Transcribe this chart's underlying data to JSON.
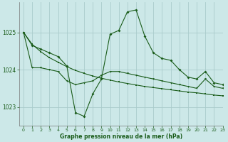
{
  "background_color": "#cce8e8",
  "grid_color": "#aacccc",
  "line_color": "#1a5c1a",
  "xlabel": "Graphe pression niveau de la mer (hPa)",
  "ylim": [
    1022.5,
    1025.8
  ],
  "xlim": [
    -0.5,
    23
  ],
  "yticks": [
    1023,
    1024,
    1025
  ],
  "xticks": [
    0,
    1,
    2,
    3,
    4,
    5,
    6,
    7,
    8,
    9,
    10,
    11,
    12,
    13,
    14,
    15,
    16,
    17,
    18,
    19,
    20,
    21,
    22,
    23
  ],
  "series": {
    "curve_peak": {
      "x": [
        0,
        1,
        2,
        3,
        4,
        5,
        6,
        7,
        8,
        9,
        10,
        11,
        12,
        13,
        14,
        15,
        16,
        17,
        18,
        19,
        20,
        21,
        22,
        23
      ],
      "y": [
        1025.0,
        1024.65,
        1024.55,
        1024.45,
        1024.35,
        1024.1,
        1022.85,
        1022.75,
        1023.35,
        1023.75,
        1024.95,
        1025.05,
        1025.55,
        1025.6,
        1024.9,
        1024.45,
        1024.3,
        1024.25,
        1024.0,
        1023.8,
        1023.75,
        1023.95,
        1023.65,
        1023.6
      ]
    },
    "curve_mid": {
      "x": [
        0,
        1,
        2,
        3,
        4,
        5,
        6,
        7,
        8,
        9,
        10,
        11,
        12,
        13,
        14,
        15,
        16,
        17,
        18,
        19,
        20,
        21,
        22,
        23
      ],
      "y": [
        1025.0,
        1024.05,
        1024.05,
        1024.0,
        1023.95,
        1023.7,
        1023.6,
        1023.65,
        1023.7,
        1023.85,
        1023.95,
        1023.95,
        1023.9,
        1023.85,
        1023.8,
        1023.75,
        1023.7,
        1023.65,
        1023.6,
        1023.55,
        1023.5,
        1023.75,
        1023.55,
        1023.5
      ]
    },
    "curve_flat": {
      "x": [
        0,
        1,
        2,
        3,
        4,
        5,
        6,
        7,
        8,
        9,
        10,
        11,
        12,
        13,
        14,
        15,
        16,
        17,
        18,
        19,
        20,
        21,
        22,
        23
      ],
      "y": [
        1025.0,
        1024.68,
        1024.48,
        1024.32,
        1024.2,
        1024.08,
        1023.98,
        1023.9,
        1023.83,
        1023.77,
        1023.72,
        1023.67,
        1023.63,
        1023.59,
        1023.55,
        1023.52,
        1023.49,
        1023.46,
        1023.43,
        1023.4,
        1023.38,
        1023.35,
        1023.32,
        1023.3
      ]
    }
  }
}
